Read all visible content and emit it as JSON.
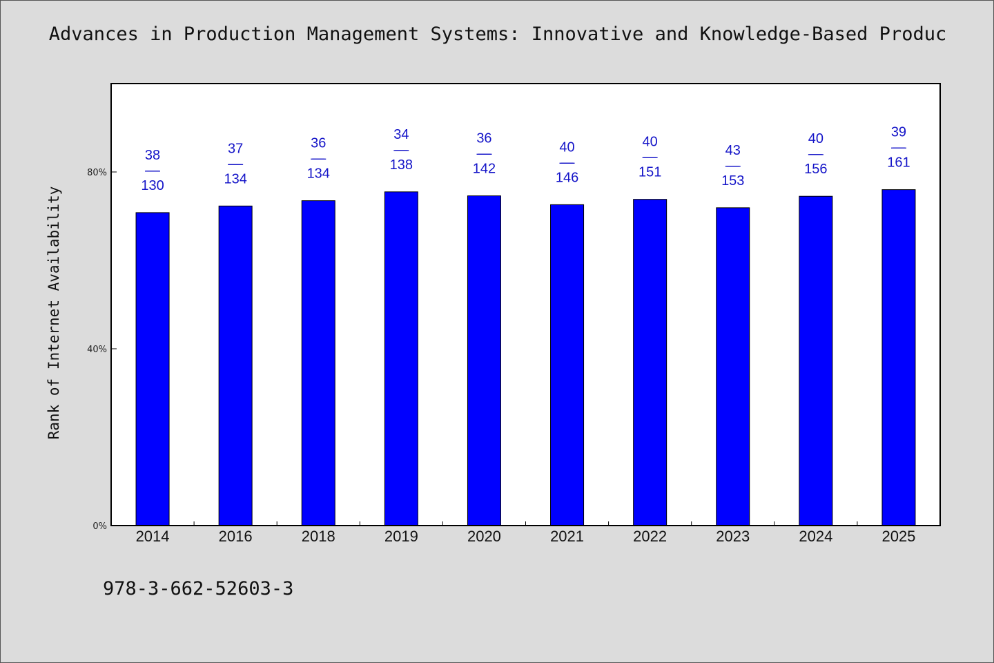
{
  "chart_data": {
    "type": "bar",
    "title": "Advances in Production Management Systems: Innovative and Knowledge-Based Produc",
    "xlabel": "",
    "ylabel": "Rank of Internet Availability",
    "categories": [
      "2014",
      "2016",
      "2018",
      "2019",
      "2020",
      "2021",
      "2022",
      "2023",
      "2024",
      "2025"
    ],
    "values": [
      70.8,
      72.3,
      73.5,
      75.5,
      74.6,
      72.6,
      73.8,
      71.9,
      74.5,
      76.0
    ],
    "bar_labels": [
      {
        "top": "38",
        "sep": "——",
        "bottom": "130"
      },
      {
        "top": "37",
        "sep": "——",
        "bottom": "134"
      },
      {
        "top": "36",
        "sep": "——",
        "bottom": "134"
      },
      {
        "top": "34",
        "sep": "——",
        "bottom": "138"
      },
      {
        "top": "36",
        "sep": "——",
        "bottom": "142"
      },
      {
        "top": "40",
        "sep": "——",
        "bottom": "146"
      },
      {
        "top": "40",
        "sep": "——",
        "bottom": "151"
      },
      {
        "top": "43",
        "sep": "——",
        "bottom": "153"
      },
      {
        "top": "40",
        "sep": "——",
        "bottom": "156"
      },
      {
        "top": "39",
        "sep": "——",
        "bottom": "161"
      }
    ],
    "ylim": [
      0,
      100
    ],
    "yticks": [
      0,
      40,
      80
    ],
    "ytick_labels": [
      "0%",
      "40%",
      "80%"
    ],
    "grid": false,
    "legend": "none",
    "colors": {
      "bar": "#0000ff",
      "data_label": "#1414c8",
      "plot_bg": "#ffffff",
      "page_bg": "#dcdcdc"
    }
  },
  "footer": {
    "isbn": "978-3-662-52603-3"
  }
}
